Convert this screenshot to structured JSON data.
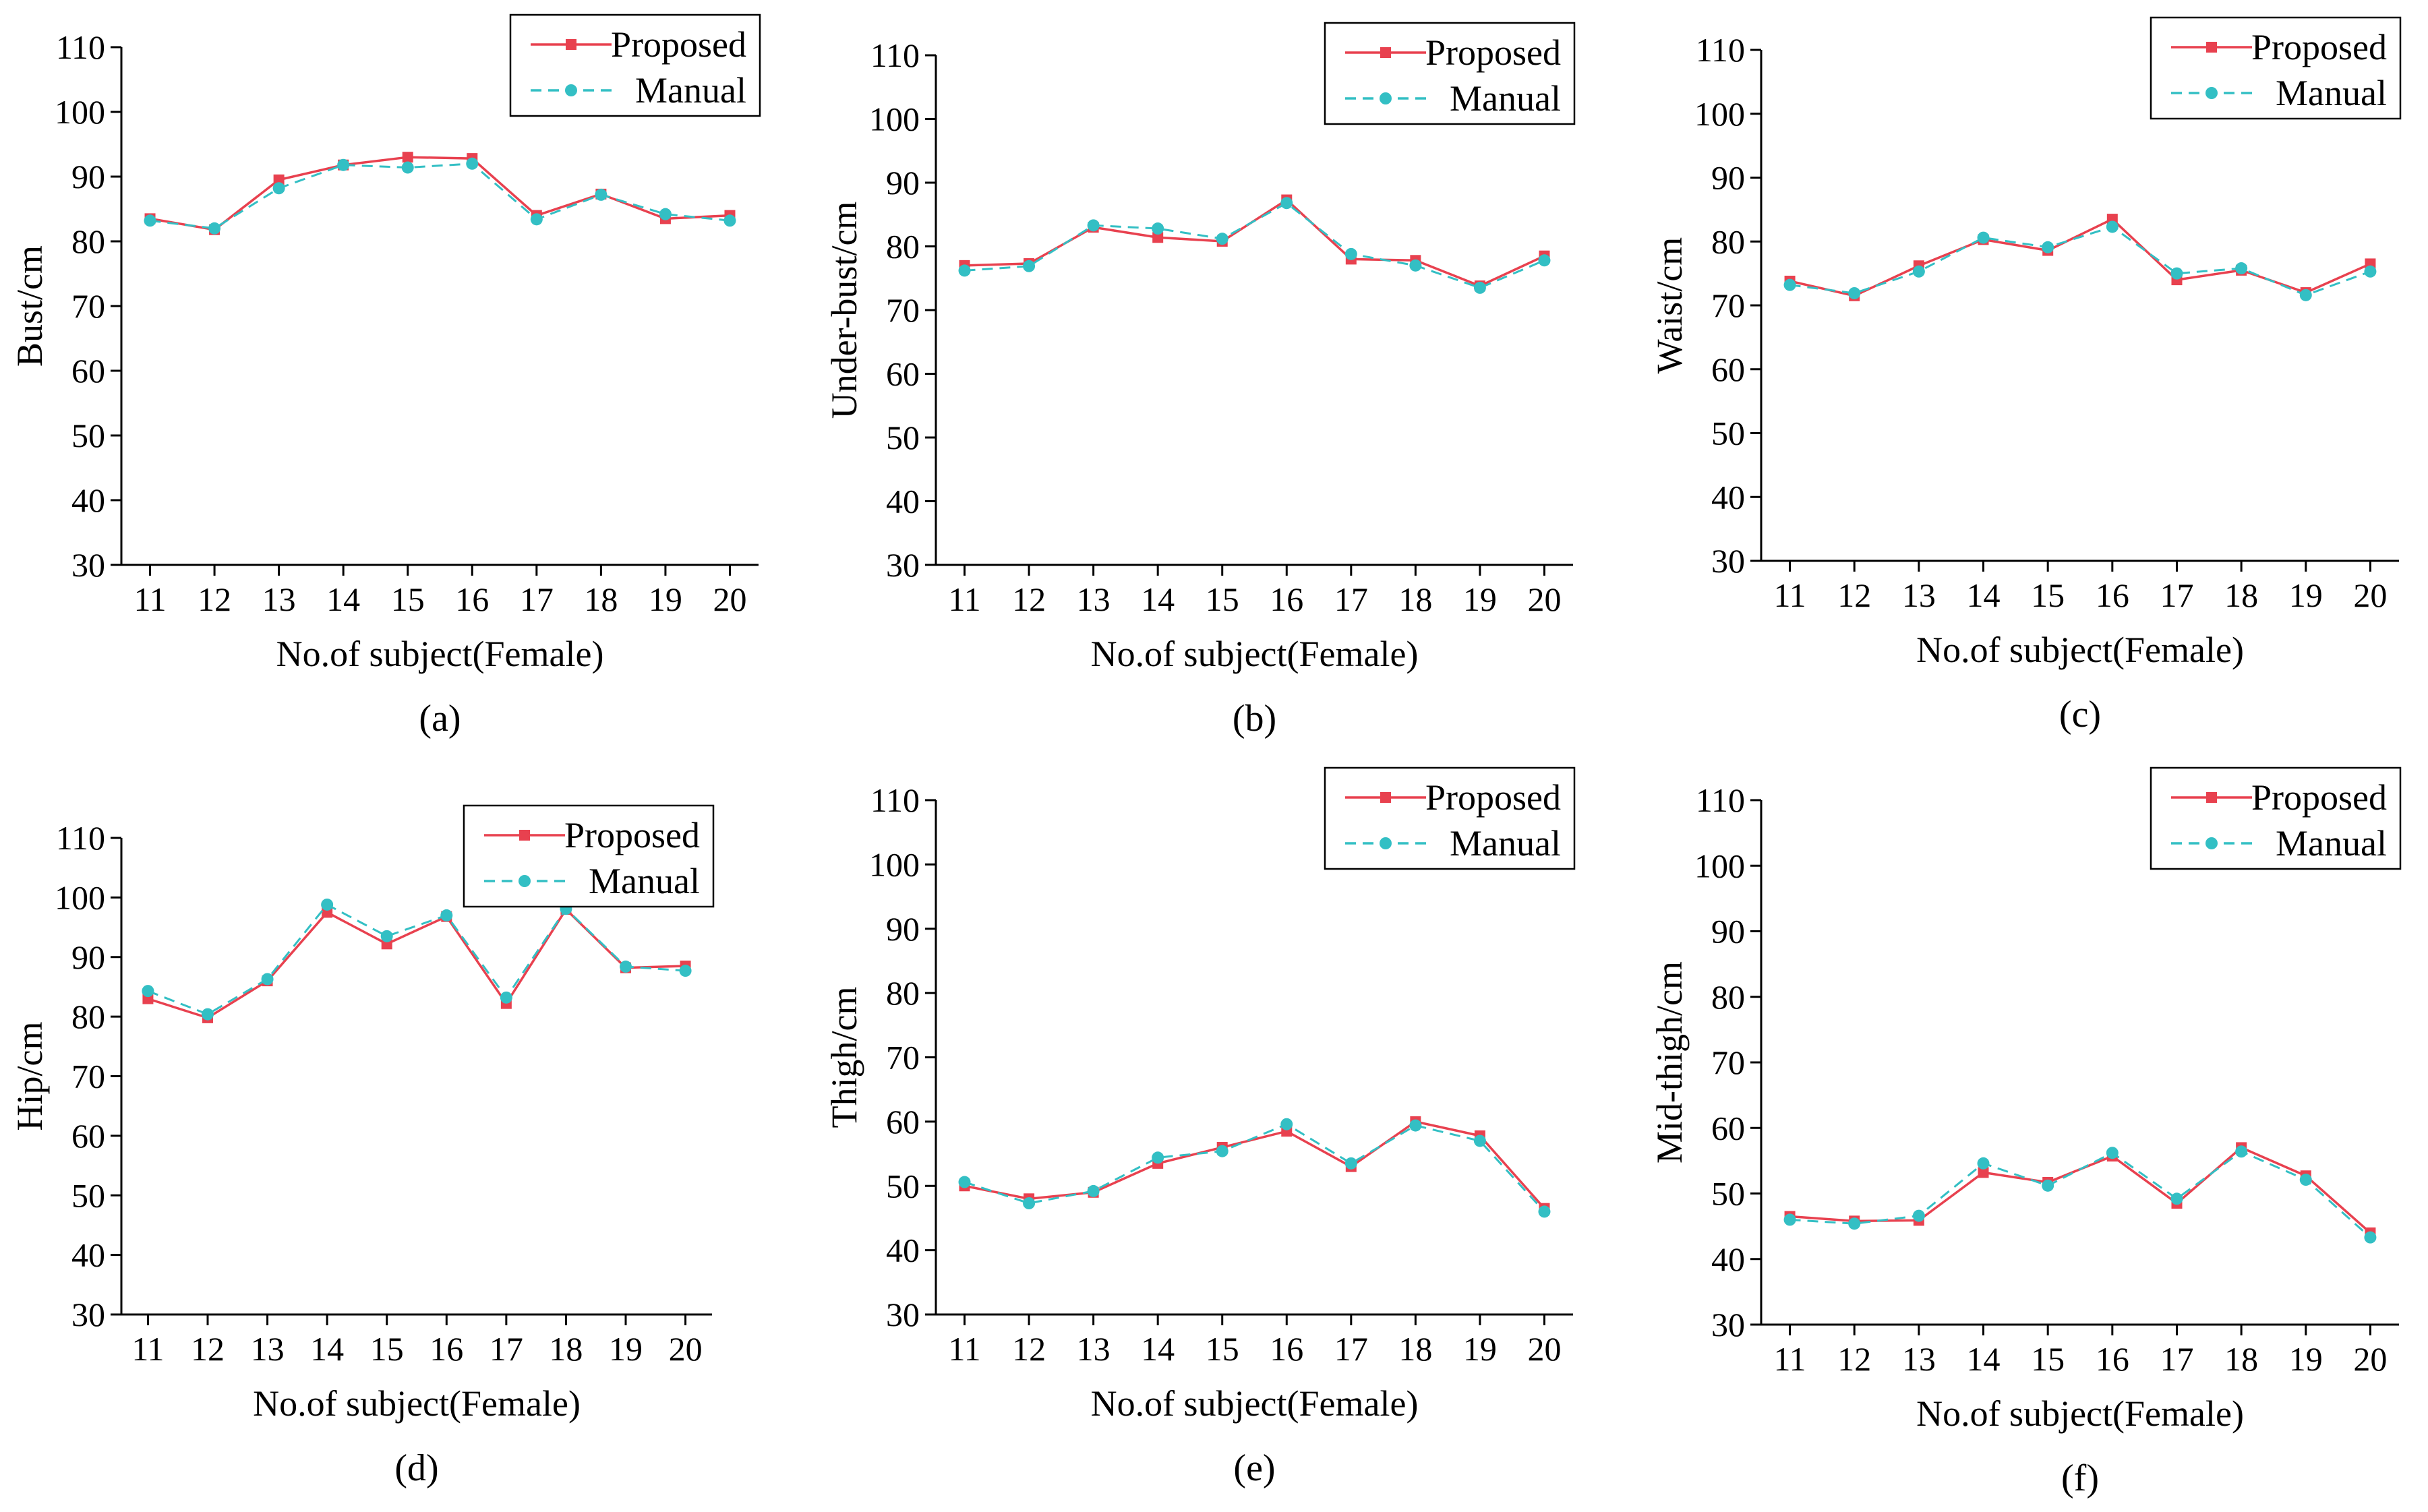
{
  "colors": {
    "proposed": "#e8414f",
    "manual": "#33bfc4",
    "axis": "#000000"
  },
  "chart_data": [
    {
      "type": "line",
      "panel_label": "(a)",
      "xlabel": "No.of subject(Female)",
      "ylabel": "Bust/cm",
      "ylim": [
        30,
        110
      ],
      "yticks": [
        30,
        40,
        50,
        60,
        70,
        80,
        90,
        100,
        110
      ],
      "categories": [
        "11",
        "12",
        "13",
        "14",
        "15",
        "16",
        "17",
        "18",
        "19",
        "20"
      ],
      "legend": {
        "position": "top-right",
        "entries": [
          "Proposed",
          "Manual"
        ]
      },
      "series": [
        {
          "name": "Proposed",
          "values": [
            83.5,
            81.8,
            89.5,
            91.8,
            93.0,
            92.8,
            84.0,
            87.3,
            83.5,
            84.0
          ]
        },
        {
          "name": "Manual",
          "values": [
            83.2,
            82.0,
            88.2,
            91.8,
            91.4,
            92.0,
            83.4,
            87.2,
            84.2,
            83.2
          ]
        }
      ]
    },
    {
      "type": "line",
      "panel_label": "(b)",
      "xlabel": "No.of subject(Female)",
      "ylabel": "Under-bust/cm",
      "ylim": [
        30,
        110
      ],
      "yticks": [
        30,
        40,
        50,
        60,
        70,
        80,
        90,
        100,
        110
      ],
      "categories": [
        "11",
        "12",
        "13",
        "14",
        "15",
        "16",
        "17",
        "18",
        "19",
        "20"
      ],
      "legend": {
        "position": "top-right",
        "entries": [
          "Proposed",
          "Manual"
        ]
      },
      "series": [
        {
          "name": "Proposed",
          "values": [
            77.0,
            77.3,
            83.0,
            81.4,
            80.8,
            87.3,
            78.0,
            77.8,
            73.8,
            78.5
          ]
        },
        {
          "name": "Manual",
          "values": [
            76.2,
            76.9,
            83.3,
            82.8,
            81.2,
            86.8,
            78.8,
            77.0,
            73.5,
            77.8
          ]
        }
      ]
    },
    {
      "type": "line",
      "panel_label": "(c)",
      "xlabel": "No.of subject(Female)",
      "ylabel": "Waist/cm",
      "ylim": [
        30,
        110
      ],
      "yticks": [
        30,
        40,
        50,
        60,
        70,
        80,
        90,
        100,
        110
      ],
      "categories": [
        "11",
        "12",
        "13",
        "14",
        "15",
        "16",
        "17",
        "18",
        "19",
        "20"
      ],
      "legend": {
        "position": "top-right",
        "entries": [
          "Proposed",
          "Manual"
        ]
      },
      "series": [
        {
          "name": "Proposed",
          "values": [
            73.8,
            71.5,
            76.2,
            80.3,
            78.6,
            83.5,
            74.0,
            75.5,
            72.0,
            76.5
          ]
        },
        {
          "name": "Manual",
          "values": [
            73.2,
            71.9,
            75.3,
            80.6,
            79.1,
            82.3,
            75.0,
            75.8,
            71.6,
            75.3
          ]
        }
      ]
    },
    {
      "type": "line",
      "panel_label": "(d)",
      "xlabel": "No.of subject(Female)",
      "ylabel": "Hip/cm",
      "ylim": [
        30,
        110
      ],
      "yticks": [
        30,
        40,
        50,
        60,
        70,
        80,
        90,
        100,
        110
      ],
      "categories": [
        "11",
        "12",
        "13",
        "14",
        "15",
        "16",
        "17",
        "18",
        "19",
        "20"
      ],
      "legend": {
        "position": "top-right",
        "entries": [
          "Proposed",
          "Manual"
        ]
      },
      "series": [
        {
          "name": "Proposed",
          "values": [
            83.0,
            79.8,
            86.0,
            97.5,
            92.2,
            96.8,
            82.2,
            98.0,
            88.2,
            88.5
          ]
        },
        {
          "name": "Manual",
          "values": [
            84.3,
            80.4,
            86.3,
            98.8,
            93.5,
            97.0,
            83.2,
            98.1,
            88.4,
            87.7
          ]
        }
      ]
    },
    {
      "type": "line",
      "panel_label": "(e)",
      "xlabel": "No.of subject(Female)",
      "ylabel": "Thigh/cm",
      "ylim": [
        30,
        110
      ],
      "yticks": [
        30,
        40,
        50,
        60,
        70,
        80,
        90,
        100,
        110
      ],
      "categories": [
        "11",
        "12",
        "13",
        "14",
        "15",
        "16",
        "17",
        "18",
        "19",
        "20"
      ],
      "legend": {
        "position": "top-right",
        "entries": [
          "Proposed",
          "Manual"
        ]
      },
      "series": [
        {
          "name": "Proposed",
          "values": [
            50.0,
            48.0,
            49.0,
            53.5,
            56.0,
            58.5,
            53.0,
            60.0,
            57.8,
            46.5
          ]
        },
        {
          "name": "Manual",
          "values": [
            50.6,
            47.3,
            49.2,
            54.4,
            55.4,
            59.6,
            53.5,
            59.4,
            57.0,
            46.0
          ]
        }
      ]
    },
    {
      "type": "line",
      "panel_label": "(f)",
      "xlabel": "No.of subject(Female)",
      "ylabel": "Mid-thigh/cm",
      "ylim": [
        30,
        110
      ],
      "yticks": [
        30,
        40,
        50,
        60,
        70,
        80,
        90,
        100,
        110
      ],
      "categories": [
        "11",
        "12",
        "13",
        "14",
        "15",
        "16",
        "17",
        "18",
        "19",
        "20"
      ],
      "legend": {
        "position": "top-right",
        "entries": [
          "Proposed",
          "Manual"
        ]
      },
      "series": [
        {
          "name": "Proposed",
          "values": [
            46.5,
            45.8,
            45.9,
            53.2,
            51.7,
            55.7,
            48.5,
            57.0,
            52.7,
            44.0
          ]
        },
        {
          "name": "Manual",
          "values": [
            46.0,
            45.4,
            46.6,
            54.6,
            51.2,
            56.2,
            49.2,
            56.4,
            52.1,
            43.3
          ]
        }
      ]
    }
  ]
}
